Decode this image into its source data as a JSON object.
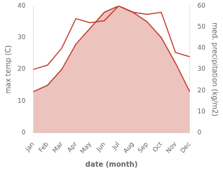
{
  "chart_data": {
    "type": "line",
    "xlabel": "date (month)",
    "ylabel": "max temp (C)",
    "y2label": "med. precipitation (kg/m2)",
    "categories": [
      "Jan",
      "Feb",
      "Mar",
      "Apr",
      "May",
      "Jun",
      "Jul",
      "Aug",
      "Sep",
      "Oct",
      "Nov",
      "Dec"
    ],
    "series": [
      {
        "type": "area",
        "color": "#c0392b",
        "values": [
          13,
          15,
          20,
          28,
          33,
          38,
          40,
          38,
          35,
          30,
          22,
          13
        ]
      },
      {
        "type": "line",
        "color": "#c0392b",
        "axis": "y2",
        "values": [
          30,
          32,
          40,
          54,
          52,
          53,
          60,
          57,
          56,
          57,
          38,
          36
        ]
      }
    ],
    "ylim": [
      0,
      40
    ],
    "yticks": [
      0,
      10,
      20,
      30,
      40
    ],
    "y2lim": [
      0,
      60
    ],
    "y2ticks": [
      0,
      10,
      20,
      30,
      40,
      50,
      60
    ],
    "grid": false
  }
}
